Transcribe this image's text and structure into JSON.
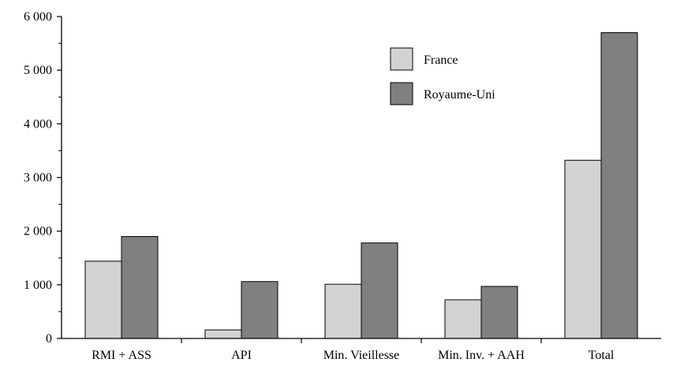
{
  "chart_data": {
    "type": "bar",
    "title": "",
    "xlabel": "",
    "ylabel": "",
    "categories": [
      "RMI + ASS",
      "API",
      "Min. Vieillesse",
      "Min. Inv. + AAH",
      "Total"
    ],
    "series": [
      {
        "name": "France",
        "values": [
          1440,
          160,
          1010,
          720,
          3320
        ],
        "color": "#d3d3d3"
      },
      {
        "name": "Royaume-Uni",
        "values": [
          1900,
          1060,
          1780,
          970,
          5700
        ],
        "color": "#808080"
      }
    ],
    "ylim": [
      0,
      6000
    ],
    "yticks": [
      0,
      1000,
      2000,
      3000,
      4000,
      5000,
      6000
    ],
    "ytick_labels": [
      "0",
      "1 000",
      "2 000",
      "3 000",
      "4 000",
      "5 000",
      "6 000"
    ],
    "legend_position": "top-right",
    "grid": false
  }
}
